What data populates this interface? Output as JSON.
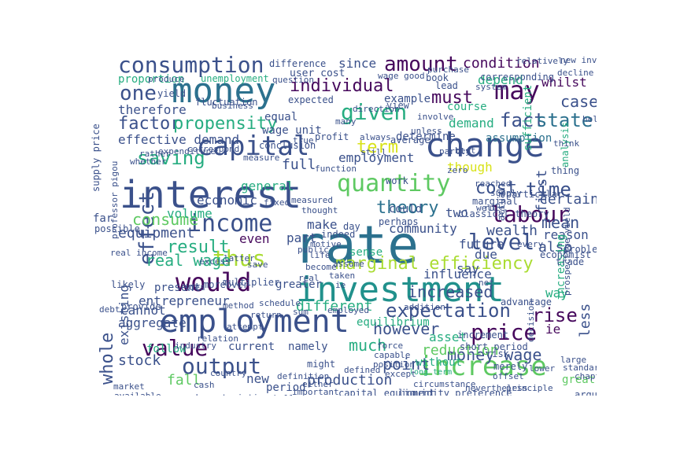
{
  "palette": {
    "dark_purple": "#46085c",
    "indigo": "#3b518b",
    "slate_blue": "#2c718e",
    "teal": "#21918c",
    "green": "#27ad81",
    "light_green": "#5ec962",
    "lime": "#aadc32",
    "yellow": "#d8e219"
  },
  "words": [
    {
      "text": "interest",
      "color": "#3b518b"
    },
    {
      "text": "rate",
      "color": "#2c718e"
    },
    {
      "text": "investment",
      "color": "#21918c"
    },
    {
      "text": "employment",
      "color": "#3b518b"
    },
    {
      "text": "money",
      "color": "#2c718e"
    },
    {
      "text": "change",
      "color": "#3b518b"
    },
    {
      "text": "capital",
      "color": "#3b518b"
    },
    {
      "text": "would",
      "color": "#46085c"
    },
    {
      "text": "income",
      "color": "#3b518b"
    },
    {
      "text": "increase",
      "color": "#5ec962"
    },
    {
      "text": "output",
      "color": "#3b518b"
    },
    {
      "text": "quantity",
      "color": "#5ec962"
    },
    {
      "text": "consumption",
      "color": "#3b518b"
    },
    {
      "text": "may",
      "color": "#46085c"
    },
    {
      "text": "labour",
      "color": "#46085c"
    },
    {
      "text": "price",
      "color": "#46085c"
    },
    {
      "text": "value",
      "color": "#46085c"
    },
    {
      "text": "amount",
      "color": "#46085c"
    },
    {
      "text": "given",
      "color": "#27ad81"
    },
    {
      "text": "thus",
      "color": "#aadc32"
    },
    {
      "text": "level",
      "color": "#3b518b"
    },
    {
      "text": "expectation",
      "color": "#3b518b"
    },
    {
      "text": "marginal efficiency",
      "color": "#aadc32"
    },
    {
      "text": "effect",
      "color": "#3b518b"
    },
    {
      "text": "one",
      "color": "#3b518b"
    },
    {
      "text": "saving",
      "color": "#27ad81"
    },
    {
      "text": "term",
      "color": "#d8e219"
    },
    {
      "text": "time",
      "color": "#3b518b"
    },
    {
      "text": "cost",
      "color": "#3b518b"
    },
    {
      "text": "theory",
      "color": "#2c718e"
    },
    {
      "text": "fact",
      "color": "#3b518b"
    },
    {
      "text": "state",
      "color": "#2c718e"
    },
    {
      "text": "factor",
      "color": "#3b518b"
    },
    {
      "text": "individual",
      "color": "#46085c"
    },
    {
      "text": "propensity",
      "color": "#27ad81"
    },
    {
      "text": "condition",
      "color": "#46085c"
    },
    {
      "text": "result",
      "color": "#27ad81"
    },
    {
      "text": "consume",
      "color": "#5ec962"
    },
    {
      "text": "real wage",
      "color": "#27ad81"
    },
    {
      "text": "increased",
      "color": "#3b518b"
    },
    {
      "text": "rise",
      "color": "#46085c"
    },
    {
      "text": "however",
      "color": "#3b518b"
    },
    {
      "text": "much",
      "color": "#27ad81"
    },
    {
      "text": "money wage",
      "color": "#3b518b"
    },
    {
      "text": "production",
      "color": "#3b518b"
    },
    {
      "text": "point",
      "color": "#3b518b"
    },
    {
      "text": "fall",
      "color": "#5ec962"
    },
    {
      "text": "whole",
      "color": "#3b518b"
    },
    {
      "text": "stock",
      "color": "#3b518b"
    },
    {
      "text": "must",
      "color": "#46085c"
    },
    {
      "text": "case",
      "color": "#3b518b"
    },
    {
      "text": "reduction",
      "color": "#5ec962"
    },
    {
      "text": "influence",
      "color": "#3b518b"
    },
    {
      "text": "mean",
      "color": "#3b518b"
    },
    {
      "text": "wealth",
      "color": "#3b518b"
    },
    {
      "text": "equipment",
      "color": "#3b518b"
    },
    {
      "text": "entrepreneur",
      "color": "#3b518b"
    },
    {
      "text": "different",
      "color": "#27ad81"
    },
    {
      "text": "aggregate",
      "color": "#3b518b"
    },
    {
      "text": "cannot",
      "color": "#3b518b"
    },
    {
      "text": "existing",
      "color": "#3b518b"
    },
    {
      "text": "asset",
      "color": "#27ad81"
    },
    {
      "text": "certain",
      "color": "#3b518b"
    },
    {
      "text": "reason",
      "color": "#3b518b"
    },
    {
      "text": "future",
      "color": "#3b518b"
    },
    {
      "text": "community",
      "color": "#3b518b"
    },
    {
      "text": "make",
      "color": "#3b518b"
    },
    {
      "text": "part",
      "color": "#3b518b"
    },
    {
      "text": "even",
      "color": "#46085c"
    },
    {
      "text": "full",
      "color": "#3b518b"
    },
    {
      "text": "general",
      "color": "#27ad81"
    },
    {
      "text": "economic",
      "color": "#3b518b"
    },
    {
      "text": "volume",
      "color": "#27ad81"
    },
    {
      "text": "employment",
      "color": "#3b518b"
    },
    {
      "text": "effective demand",
      "color": "#3b518b"
    },
    {
      "text": "demand",
      "color": "#27ad81"
    },
    {
      "text": "therefore",
      "color": "#3b518b"
    },
    {
      "text": "proportion",
      "color": "#27ad81"
    },
    {
      "text": "since",
      "color": "#3b518b"
    },
    {
      "text": "depend",
      "color": "#27ad81"
    },
    {
      "text": "assumption",
      "color": "#2c718e"
    },
    {
      "text": "whilst",
      "color": "#46085c"
    },
    {
      "text": "corresponding",
      "color": "#3b518b"
    },
    {
      "text": "also",
      "color": "#3b518b"
    },
    {
      "text": "first",
      "color": "#3b518b"
    },
    {
      "text": "less",
      "color": "#3b518b"
    },
    {
      "text": "ie",
      "color": "#46085c"
    },
    {
      "text": "way",
      "color": "#27ad81"
    },
    {
      "text": "increasing",
      "color": "#27ad81"
    },
    {
      "text": "though",
      "color": "#d8e219"
    },
    {
      "text": "due",
      "color": "#3b518b"
    },
    {
      "text": "two",
      "color": "#3b518b"
    },
    {
      "text": "say",
      "color": "#3b518b"
    },
    {
      "text": "new",
      "color": "#3b518b"
    },
    {
      "text": "period",
      "color": "#3b518b"
    },
    {
      "text": "current",
      "color": "#3b518b"
    },
    {
      "text": "namely",
      "color": "#3b518b"
    },
    {
      "text": "follow",
      "color": "#27ad81"
    },
    {
      "text": "might",
      "color": "#3b518b"
    },
    {
      "text": "without",
      "color": "#27ad81"
    },
    {
      "text": "unemployment",
      "color": "#27ad81"
    },
    {
      "text": "fluctuation",
      "color": "#3b518b"
    },
    {
      "text": "equal",
      "color": "#3b518b"
    },
    {
      "text": "wage unit",
      "color": "#3b518b"
    },
    {
      "text": "expected",
      "color": "#3b518b"
    },
    {
      "text": "course",
      "color": "#27ad81"
    },
    {
      "text": "example",
      "color": "#3b518b"
    },
    {
      "text": "determine",
      "color": "#3b518b"
    },
    {
      "text": "could",
      "color": "#3b518b"
    },
    {
      "text": "perhaps",
      "color": "#3b518b"
    },
    {
      "text": "greater",
      "color": "#3b518b"
    },
    {
      "text": "sense",
      "color": "#27ad81"
    },
    {
      "text": "present",
      "color": "#3b518b"
    },
    {
      "text": "equilibrium",
      "color": "#27ad81"
    },
    {
      "text": "capital equipment",
      "color": "#3b518b"
    },
    {
      "text": "liquidity preference",
      "color": "#3b518b"
    },
    {
      "text": "long term",
      "color": "#27ad81"
    },
    {
      "text": "short period",
      "color": "#3b518b"
    },
    {
      "text": "supply price",
      "color": "#3b518b"
    },
    {
      "text": "new investment",
      "color": "#3b518b"
    },
    {
      "text": "relatively",
      "color": "#3b518b"
    },
    {
      "text": "decline",
      "color": "#3b518b"
    },
    {
      "text": "particular",
      "color": "#3b518b"
    },
    {
      "text": "actual",
      "color": "#3b518b"
    },
    {
      "text": "marginal",
      "color": "#3b518b"
    },
    {
      "text": "classical theory",
      "color": "#3b518b"
    },
    {
      "text": "sufficient",
      "color": "#27ad81"
    },
    {
      "text": "analysis",
      "color": "#27ad81"
    },
    {
      "text": "thing",
      "color": "#3b518b"
    },
    {
      "text": "great",
      "color": "#5ec962"
    },
    {
      "text": "argument",
      "color": "#3b518b"
    },
    {
      "text": "risk",
      "color": "#3b518b"
    },
    {
      "text": "merely",
      "color": "#3b518b"
    },
    {
      "text": "economist",
      "color": "#3b518b"
    },
    {
      "text": "trade",
      "color": "#3b518b"
    },
    {
      "text": "problem",
      "color": "#3b518b"
    },
    {
      "text": "advantage",
      "color": "#3b518b"
    },
    {
      "text": "increment",
      "color": "#3b518b"
    },
    {
      "text": "multiplier",
      "color": "#3b518b"
    },
    {
      "text": "moreover",
      "color": "#3b518b"
    },
    {
      "text": "possible",
      "color": "#3b518b"
    },
    {
      "text": "far",
      "color": "#3b518b"
    },
    {
      "text": "yield",
      "color": "#3b518b"
    },
    {
      "text": "book",
      "color": "#3b518b"
    },
    {
      "text": "system",
      "color": "#3b518b"
    },
    {
      "text": "question",
      "color": "#3b518b"
    },
    {
      "text": "difference",
      "color": "#3b518b"
    },
    {
      "text": "produce",
      "color": "#3b518b"
    },
    {
      "text": "user cost",
      "color": "#3b518b"
    },
    {
      "text": "wage good",
      "color": "#3b518b"
    },
    {
      "text": "lead",
      "color": "#3b518b"
    },
    {
      "text": "work",
      "color": "#3b518b"
    },
    {
      "text": "view",
      "color": "#3b518b"
    },
    {
      "text": "direction",
      "color": "#3b518b"
    },
    {
      "text": "profit",
      "color": "#3b518b"
    },
    {
      "text": "always",
      "color": "#3b518b"
    },
    {
      "text": "measure",
      "color": "#3b518b"
    },
    {
      "text": "conclusion",
      "color": "#3b518b"
    },
    {
      "text": "average",
      "color": "#3b518b"
    },
    {
      "text": "function",
      "color": "#3b518b"
    },
    {
      "text": "still",
      "color": "#3b518b"
    },
    {
      "text": "day",
      "color": "#3b518b"
    },
    {
      "text": "indeed",
      "color": "#3b518b"
    },
    {
      "text": "taken",
      "color": "#3b518b"
    },
    {
      "text": "motive",
      "color": "#3b518b"
    },
    {
      "text": "life",
      "color": "#3b518b"
    },
    {
      "text": "assume",
      "color": "#3b518b"
    },
    {
      "text": "definition",
      "color": "#3b518b"
    },
    {
      "text": "either",
      "color": "#3b518b"
    },
    {
      "text": "shall",
      "color": "#3b518b"
    },
    {
      "text": "important",
      "color": "#3b518b"
    },
    {
      "text": "characteristic",
      "color": "#3b518b"
    },
    {
      "text": "available",
      "color": "#3b518b"
    },
    {
      "text": "market",
      "color": "#3b518b"
    },
    {
      "text": "industry",
      "color": "#3b518b"
    },
    {
      "text": "country",
      "color": "#3b518b"
    },
    {
      "text": "relation",
      "color": "#3b518b"
    },
    {
      "text": "cash",
      "color": "#3b518b"
    },
    {
      "text": "except",
      "color": "#3b518b"
    },
    {
      "text": "defined",
      "color": "#3b518b"
    },
    {
      "text": "position",
      "color": "#3b518b"
    },
    {
      "text": "nevertheless",
      "color": "#3b518b"
    },
    {
      "text": "principle",
      "color": "#3b518b"
    },
    {
      "text": "correspond",
      "color": "#3b518b"
    },
    {
      "text": "rather",
      "color": "#3b518b"
    },
    {
      "text": "expenditure",
      "color": "#3b518b"
    },
    {
      "text": "whether",
      "color": "#3b518b"
    },
    {
      "text": "professor pigou",
      "color": "#3b518b"
    },
    {
      "text": "real income",
      "color": "#3b518b"
    },
    {
      "text": "excess",
      "color": "#3b518b"
    },
    {
      "text": "idea",
      "color": "#3b518b"
    },
    {
      "text": "latter",
      "color": "#3b518b"
    },
    {
      "text": "method",
      "color": "#3b518b"
    },
    {
      "text": "likely",
      "color": "#3b518b"
    },
    {
      "text": "provide",
      "color": "#3b518b"
    },
    {
      "text": "debt",
      "color": "#3b518b"
    },
    {
      "text": "reached",
      "color": "#3b518b"
    },
    {
      "text": "supply",
      "color": "#3b518b"
    },
    {
      "text": "prospective yield",
      "color": "#3b518b"
    },
    {
      "text": "decision",
      "color": "#3b518b"
    },
    {
      "text": "think",
      "color": "#3b518b"
    },
    {
      "text": "involve",
      "color": "#3b518b"
    },
    {
      "text": "unless",
      "color": "#3b518b"
    },
    {
      "text": "partly",
      "color": "#3b518b"
    },
    {
      "text": "best",
      "color": "#3b518b"
    },
    {
      "text": "purchase",
      "color": "#3b518b"
    },
    {
      "text": "business",
      "color": "#3b518b"
    },
    {
      "text": "true",
      "color": "#3b518b"
    },
    {
      "text": "many",
      "color": "#3b518b"
    },
    {
      "text": "every",
      "color": "#3b518b"
    },
    {
      "text": "rule",
      "color": "#3b518b"
    },
    {
      "text": "well",
      "color": "#3b518b"
    },
    {
      "text": "hold",
      "color": "#3b518b"
    },
    {
      "text": "ie",
      "color": "#3b518b"
    },
    {
      "text": "force",
      "color": "#3b518b"
    },
    {
      "text": "net",
      "color": "#3b518b"
    },
    {
      "text": "real",
      "color": "#3b518b"
    },
    {
      "text": "sum",
      "color": "#3b518b"
    },
    {
      "text": "save",
      "color": "#3b518b"
    },
    {
      "text": "zero",
      "color": "#3b518b"
    },
    {
      "text": "public",
      "color": "#3b518b"
    },
    {
      "text": "become",
      "color": "#3b518b"
    },
    {
      "text": "fixed",
      "color": "#3b518b"
    },
    {
      "text": "measured",
      "color": "#3b518b"
    },
    {
      "text": "thought",
      "color": "#3b518b"
    },
    {
      "text": "schedule",
      "color": "#3b518b"
    },
    {
      "text": "return",
      "color": "#3b518b"
    },
    {
      "text": "circumstance",
      "color": "#3b518b"
    },
    {
      "text": "employed",
      "color": "#3b518b"
    },
    {
      "text": "capable",
      "color": "#3b518b"
    },
    {
      "text": "attempt",
      "color": "#3b518b"
    },
    {
      "text": "large",
      "color": "#3b518b"
    },
    {
      "text": "offset",
      "color": "#3b518b"
    },
    {
      "text": "standard",
      "color": "#3b518b"
    },
    {
      "text": "addition",
      "color": "#3b518b"
    },
    {
      "text": "lower",
      "color": "#3b518b"
    },
    {
      "text": "chapter",
      "color": "#3b518b"
    }
  ]
}
